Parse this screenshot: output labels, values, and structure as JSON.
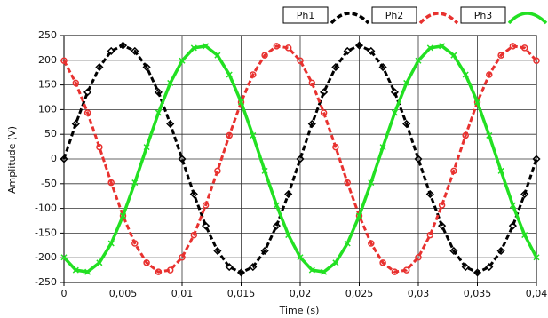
{
  "chart_data": {
    "type": "line",
    "x_label": "Time (s)",
    "y_label": "Amplitude (V)",
    "x": [
      0,
      0.001,
      0.002,
      0.003,
      0.004,
      0.005,
      0.006,
      0.007,
      0.008,
      0.009,
      0.01,
      0.011,
      0.012,
      0.013,
      0.014,
      0.015,
      0.016,
      0.017,
      0.018,
      0.019,
      0.02,
      0.021,
      0.022,
      0.023,
      0.024,
      0.025,
      0.026,
      0.027,
      0.028,
      0.029,
      0.03,
      0.031,
      0.032,
      0.033,
      0.034,
      0.035,
      0.036,
      0.037,
      0.038,
      0.039,
      0.04
    ],
    "series": [
      {
        "name": "Ph1",
        "color": "#000000",
        "marker": "diamond",
        "dash": true,
        "values": [
          0,
          71.1,
          135.2,
          186.1,
          218.7,
          230,
          218.7,
          186.1,
          135.2,
          71.1,
          0,
          -71.1,
          -135.2,
          -186.1,
          -218.7,
          -230,
          -218.7,
          -186.1,
          -135.2,
          -71.1,
          0,
          71.1,
          135.2,
          186.1,
          218.7,
          230,
          218.7,
          186.1,
          135.2,
          71.1,
          0,
          -71.1,
          -135.2,
          -186.1,
          -218.7,
          -230,
          -218.7,
          -186.1,
          -135.2,
          -71.1,
          0
        ]
      },
      {
        "name": "Ph2",
        "color": "#e8312f",
        "marker": "circle",
        "dash": true,
        "values": [
          199.2,
          153.9,
          93.5,
          24.0,
          -47.8,
          -115,
          -170.9,
          -210.1,
          -228.7,
          -225.0,
          -199.2,
          -153.9,
          -93.5,
          -24.0,
          47.8,
          115,
          170.9,
          210.1,
          228.7,
          225.0,
          199.2,
          153.9,
          93.5,
          24.0,
          -47.8,
          -115,
          -170.9,
          -210.1,
          -228.7,
          -225.0,
          -199.2,
          -153.9,
          -93.5,
          -24.0,
          47.8,
          115,
          170.9,
          210.1,
          228.7,
          225.0,
          199.2
        ]
      },
      {
        "name": "Ph3",
        "color": "#22e022",
        "marker": "cross",
        "dash": false,
        "values": [
          -199.2,
          -225.0,
          -228.7,
          -210.1,
          -170.9,
          -115,
          -47.8,
          24.0,
          93.5,
          153.9,
          199.2,
          225.0,
          228.7,
          210.1,
          170.9,
          115,
          47.8,
          -24.0,
          -93.5,
          -153.9,
          -199.2,
          -225.0,
          -228.7,
          -210.1,
          -170.9,
          -115,
          -47.8,
          24.0,
          93.5,
          153.9,
          199.2,
          225.0,
          228.7,
          210.1,
          170.9,
          115,
          47.8,
          -24.0,
          -93.5,
          -153.9,
          -199.2
        ]
      }
    ],
    "xlim": [
      0,
      0.04
    ],
    "xticks": [
      0,
      {
        "value": 0.005,
        "label": "0,005"
      },
      {
        "value": 0.01,
        "label": "0,01"
      },
      {
        "value": 0.015,
        "label": "0,015"
      },
      {
        "value": 0.02,
        "label": "0,02"
      },
      {
        "value": 0.025,
        "label": "0,025"
      },
      {
        "value": 0.03,
        "label": "0,03"
      },
      {
        "value": 0.035,
        "label": "0,035"
      },
      {
        "value": 0.04,
        "label": "0,04"
      }
    ],
    "ylim": [
      -250,
      250
    ],
    "yticks": [
      -250,
      -200,
      -150,
      -100,
      -50,
      0,
      50,
      100,
      150,
      200,
      250
    ],
    "grid": true,
    "legend": "top-right"
  }
}
